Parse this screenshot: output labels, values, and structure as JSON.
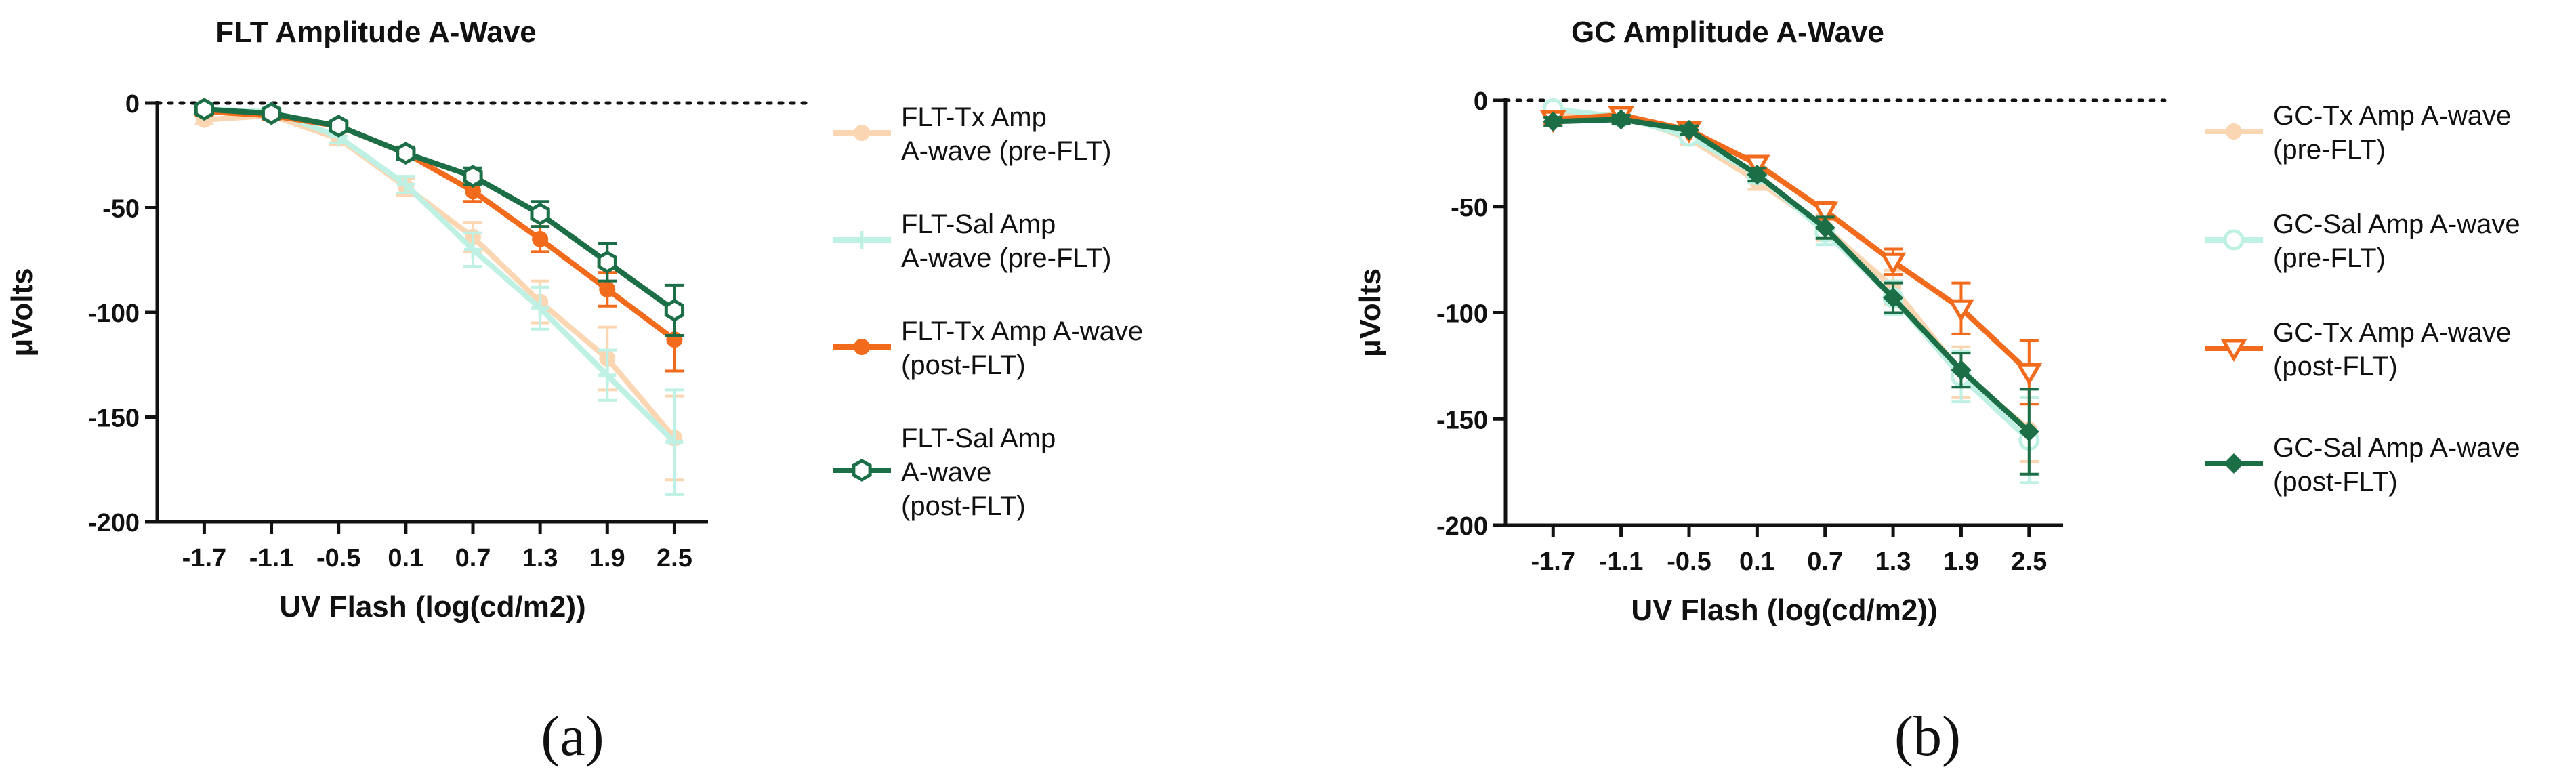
{
  "chart_data": [
    {
      "type": "line",
      "title": "FLT Amplitude A-Wave",
      "xlabel": "UV Flash (log(cd/m2))",
      "ylabel": "μVolts",
      "categories": [
        "-1.7",
        "-1.1",
        "-0.5",
        "0.1",
        "0.7",
        "1.3",
        "1.9",
        "2.5"
      ],
      "ylim": [
        -200,
        0
      ],
      "yticks": [
        0,
        -50,
        -100,
        -150,
        -200
      ],
      "reference_line": 0,
      "legend": "right",
      "series": [
        {
          "name": "FLT-Tx Amp A-wave (pre-FLT)",
          "legend_lines": [
            "FLT-Tx Amp",
            "A-wave (pre-FLT)"
          ],
          "color": "#fbd6b3",
          "marker": "circle",
          "values": [
            -8,
            -6,
            -17,
            -40,
            -64,
            -95,
            -122,
            -160
          ],
          "errors": [
            2,
            2,
            3,
            4,
            7,
            10,
            15,
            20
          ]
        },
        {
          "name": "FLT-Sal Amp A-wave (pre-FLT)",
          "legend_lines": [
            "FLT-Sal Amp",
            "A-wave (pre-FLT)"
          ],
          "color": "#bff0e4",
          "marker": "plus",
          "values": [
            -3,
            -4,
            -16,
            -39,
            -70,
            -98,
            -130,
            -162
          ],
          "errors": [
            2,
            2,
            3,
            4,
            8,
            10,
            12,
            25
          ]
        },
        {
          "name": "FLT-Tx Amp A-wave (post-FLT)",
          "legend_lines": [
            "FLT-Tx Amp A-wave",
            "(post-FLT)"
          ],
          "color": "#f26a1b",
          "marker": "filled-circle",
          "values": [
            -4,
            -6,
            -11,
            -24,
            -42,
            -65,
            -89,
            -113
          ],
          "errors": [
            2,
            2,
            2,
            3,
            5,
            6,
            8,
            15
          ]
        },
        {
          "name": "FLT-Sal Amp A-wave (post-FLT)",
          "legend_lines": [
            "FLT-Sal Amp",
            "A-wave",
            "(post-FLT)"
          ],
          "color": "#1b6e45",
          "marker": "hexagon",
          "values": [
            -3,
            -5,
            -11,
            -24,
            -35,
            -53,
            -76,
            -99
          ],
          "errors": [
            2,
            2,
            2,
            3,
            4,
            6,
            9,
            12
          ]
        }
      ]
    },
    {
      "type": "line",
      "title": "GC Amplitude A-Wave",
      "xlabel": "UV Flash (log(cd/m2))",
      "ylabel": "μVolts",
      "categories": [
        "-1.7",
        "-1.1",
        "-0.5",
        "0.1",
        "0.7",
        "1.3",
        "1.9",
        "2.5"
      ],
      "ylim": [
        -200,
        0
      ],
      "yticks": [
        0,
        -50,
        -100,
        -150,
        -200
      ],
      "reference_line": 0,
      "legend": "right",
      "series": [
        {
          "name": "GC-Tx Amp A-wave (pre-FLT)",
          "legend_lines": [
            "GC-Tx Amp A-wave",
            "(pre-FLT)"
          ],
          "color": "#fbd6b3",
          "marker": "circle",
          "values": [
            -6,
            -7,
            -18,
            -38,
            -60,
            -88,
            -128,
            -155
          ],
          "errors": [
            2,
            2,
            3,
            4,
            6,
            8,
            12,
            15
          ]
        },
        {
          "name": "GC-Sal Amp A-wave (pre-FLT)",
          "legend_lines": [
            "GC-Sal Amp A-wave",
            "(pre-FLT)"
          ],
          "color": "#bff0e4",
          "marker": "open-circle",
          "values": [
            -4,
            -8,
            -17,
            -35,
            -62,
            -93,
            -130,
            -160
          ],
          "errors": [
            2,
            2,
            3,
            4,
            6,
            8,
            12,
            20
          ]
        },
        {
          "name": "GC-Tx Amp A-wave (post-FLT)",
          "legend_lines": [
            "GC-Tx Amp A-wave",
            " (post-FLT)"
          ],
          "color": "#f26a1b",
          "marker": "triangle-down",
          "values": [
            -9,
            -7,
            -14,
            -30,
            -52,
            -76,
            -98,
            -128
          ],
          "errors": [
            2,
            2,
            2,
            3,
            4,
            6,
            12,
            15
          ]
        },
        {
          "name": "GC-Sal Amp A-wave (post-FLT)",
          "legend_lines": [
            "GC-Sal Amp A-wave",
            "(post-FLT)"
          ],
          "color": "#1b6e45",
          "marker": "diamond",
          "values": [
            -10,
            -9,
            -14,
            -35,
            -60,
            -93,
            -127,
            -156
          ],
          "errors": [
            2,
            2,
            2,
            3,
            5,
            7,
            8,
            20
          ]
        }
      ]
    }
  ],
  "panel_labels": [
    "(a)",
    "(b)"
  ]
}
